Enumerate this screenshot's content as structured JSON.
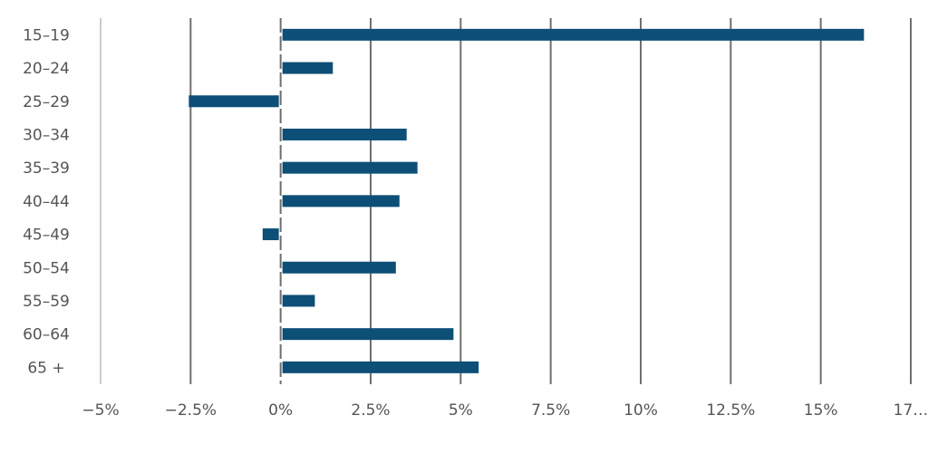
{
  "chart_data": {
    "type": "bar",
    "orientation": "horizontal",
    "title": "",
    "xlabel": "",
    "ylabel": "",
    "categories": [
      "15–19",
      "20–24",
      "25–29",
      "30–34",
      "35–39",
      "40–44",
      "45–49",
      "50–54",
      "55–59",
      "60–64",
      "65 +"
    ],
    "values": [
      16.2,
      1.45,
      -2.55,
      3.5,
      3.8,
      3.3,
      -0.5,
      3.2,
      0.95,
      4.8,
      5.5
    ],
    "xlim": [
      -5,
      17.5
    ],
    "xticks": [
      -5,
      -2.5,
      0,
      2.5,
      5,
      7.5,
      10,
      12.5,
      15,
      17.5
    ],
    "xtick_labels": [
      "−5%",
      "−2.5%",
      "0%",
      "2.5%",
      "5%",
      "7.5%",
      "10%",
      "12.5%",
      "15%",
      "17…"
    ],
    "grid": true,
    "legend": "none",
    "bar_color": "#0d4f77"
  }
}
